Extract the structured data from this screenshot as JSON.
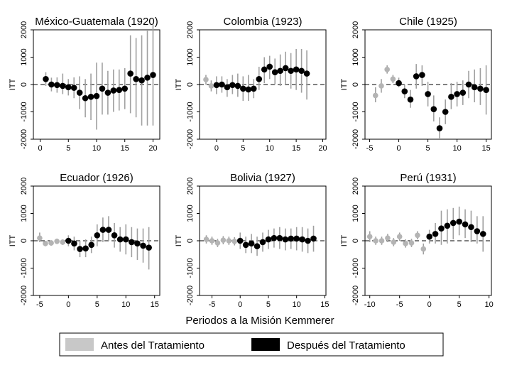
{
  "chart_data": {
    "type": "scatter",
    "style": "point estimates with confidence interval bars (event study)",
    "xlabel": "Periodos a la Misión Kemmerer",
    "ylabel": "ITT",
    "ylim": [
      -2000,
      2000
    ],
    "yticks": [
      "-2000",
      "-1000",
      "0",
      "1000",
      "2000"
    ],
    "legend": {
      "placement": "bottom",
      "entries": [
        {
          "label": "Antes del Tratamiento",
          "color": "#c8c8c8"
        },
        {
          "label": "Después del Tratamiento",
          "color": "#000000"
        }
      ]
    },
    "colors": {
      "pre": "#b4b4b4",
      "post": "#000000",
      "ci": "#a0a0a0",
      "zero_line": "#000000"
    },
    "panels": [
      {
        "title": "México-Guatemala (1920)",
        "xlim": [
          -1.2,
          21.2
        ],
        "xticks": [
          0,
          5,
          10,
          15,
          20
        ],
        "pre": [],
        "post": [
          {
            "x": 1,
            "y": 200,
            "lo": -50,
            "hi": 450
          },
          {
            "x": 2,
            "y": 0,
            "lo": -250,
            "hi": 250
          },
          {
            "x": 3,
            "y": -20,
            "lo": -300,
            "hi": 260
          },
          {
            "x": 4,
            "y": -50,
            "lo": -350,
            "hi": 400
          },
          {
            "x": 5,
            "y": -100,
            "lo": -400,
            "hi": 200
          },
          {
            "x": 6,
            "y": -120,
            "lo": -500,
            "hi": 260
          },
          {
            "x": 7,
            "y": -300,
            "lo": -900,
            "hi": 300
          },
          {
            "x": 8,
            "y": -500,
            "lo": -1200,
            "hi": 200
          },
          {
            "x": 9,
            "y": -450,
            "lo": -1300,
            "hi": 400
          },
          {
            "x": 10,
            "y": -420,
            "lo": -1650,
            "hi": 800
          },
          {
            "x": 11,
            "y": -150,
            "lo": -1100,
            "hi": 800
          },
          {
            "x": 12,
            "y": -300,
            "lo": -1100,
            "hi": 500
          },
          {
            "x": 13,
            "y": -220,
            "lo": -1000,
            "hi": 550
          },
          {
            "x": 14,
            "y": -200,
            "lo": -950,
            "hi": 550
          },
          {
            "x": 15,
            "y": -150,
            "lo": -900,
            "hi": 600
          },
          {
            "x": 16,
            "y": 400,
            "lo": -1050,
            "hi": 1800
          },
          {
            "x": 17,
            "y": 200,
            "lo": -1200,
            "hi": 1700
          },
          {
            "x": 18,
            "y": 150,
            "lo": -1500,
            "hi": 1800
          },
          {
            "x": 19,
            "y": 250,
            "lo": -1500,
            "hi": 2000
          },
          {
            "x": 20,
            "y": 350,
            "lo": -1500,
            "hi": 2200
          }
        ]
      },
      {
        "title": "Colombia (1923)",
        "xlim": [
          -3.2,
          20.6
        ],
        "xticks": [
          0,
          5,
          10,
          15,
          20
        ],
        "pre": [
          {
            "x": -2,
            "y": 180,
            "lo": 0,
            "hi": 350
          },
          {
            "x": -1,
            "y": -50,
            "lo": -250,
            "hi": 150
          }
        ],
        "post": [
          {
            "x": 0,
            "y": -20,
            "lo": -350,
            "hi": 300
          },
          {
            "x": 1,
            "y": 0,
            "lo": -300,
            "hi": 300
          },
          {
            "x": 2,
            "y": -100,
            "lo": -450,
            "hi": 200
          },
          {
            "x": 3,
            "y": -20,
            "lo": -350,
            "hi": 350
          },
          {
            "x": 4,
            "y": -50,
            "lo": -450,
            "hi": 400
          },
          {
            "x": 5,
            "y": -150,
            "lo": -600,
            "hi": 300
          },
          {
            "x": 6,
            "y": -180,
            "lo": -600,
            "hi": 350
          },
          {
            "x": 7,
            "y": -150,
            "lo": -500,
            "hi": 200
          },
          {
            "x": 8,
            "y": 200,
            "lo": -200,
            "hi": 650
          },
          {
            "x": 9,
            "y": 550,
            "lo": 50,
            "hi": 1000
          },
          {
            "x": 10,
            "y": 650,
            "lo": 200,
            "hi": 1050
          },
          {
            "x": 11,
            "y": 450,
            "lo": 0,
            "hi": 950
          },
          {
            "x": 12,
            "y": 500,
            "lo": -50,
            "hi": 1100
          },
          {
            "x": 13,
            "y": 600,
            "lo": 0,
            "hi": 1200
          },
          {
            "x": 14,
            "y": 500,
            "lo": -150,
            "hi": 1150
          },
          {
            "x": 15,
            "y": 550,
            "lo": -200,
            "hi": 1300
          },
          {
            "x": 16,
            "y": 500,
            "lo": -300,
            "hi": 1300
          },
          {
            "x": 17,
            "y": 400,
            "lo": -550,
            "hi": 1250
          }
        ]
      },
      {
        "title": "Chile (1925)",
        "xlim": [
          -5.8,
          15.9
        ],
        "xticks": [
          -5,
          0,
          5,
          10,
          15
        ],
        "pre": [
          {
            "x": -4,
            "y": -400,
            "lo": -650,
            "hi": -100
          },
          {
            "x": -3,
            "y": -50,
            "lo": -300,
            "hi": 200
          },
          {
            "x": -2,
            "y": 550,
            "lo": 400,
            "hi": 700
          },
          {
            "x": -1,
            "y": 200,
            "lo": 50,
            "hi": 350
          }
        ],
        "post": [
          {
            "x": 0,
            "y": 50,
            "lo": -100,
            "hi": 250
          },
          {
            "x": 1,
            "y": -250,
            "lo": -500,
            "hi": 0
          },
          {
            "x": 2,
            "y": -550,
            "lo": -850,
            "hi": -200
          },
          {
            "x": 3,
            "y": 300,
            "lo": -150,
            "hi": 750
          },
          {
            "x": 4,
            "y": 350,
            "lo": -50,
            "hi": 700
          },
          {
            "x": 5,
            "y": -350,
            "lo": -800,
            "hi": 100
          },
          {
            "x": 6,
            "y": -900,
            "lo": -1350,
            "hi": -400
          },
          {
            "x": 7,
            "y": -1600,
            "lo": -2000,
            "hi": -1200
          },
          {
            "x": 8,
            "y": -1000,
            "lo": -1450,
            "hi": -550
          },
          {
            "x": 9,
            "y": -450,
            "lo": -900,
            "hi": 50
          },
          {
            "x": 10,
            "y": -350,
            "lo": -800,
            "hi": 100
          },
          {
            "x": 11,
            "y": -300,
            "lo": -750,
            "hi": 150
          },
          {
            "x": 12,
            "y": 0,
            "lo": -500,
            "hi": 500
          },
          {
            "x": 13,
            "y": -100,
            "lo": -650,
            "hi": 550
          },
          {
            "x": 14,
            "y": -150,
            "lo": -750,
            "hi": 600
          },
          {
            "x": 15,
            "y": -200,
            "lo": -1100,
            "hi": 700
          }
        ]
      },
      {
        "title": "Ecuador (1926)",
        "xlim": [
          -6.1,
          15.9
        ],
        "xticks": [
          -5,
          0,
          5,
          10,
          15
        ],
        "pre": [
          {
            "x": -5,
            "y": 100,
            "lo": -50,
            "hi": 300
          },
          {
            "x": -4,
            "y": -100,
            "lo": -200,
            "hi": 0
          },
          {
            "x": -3,
            "y": -80,
            "lo": -180,
            "hi": 20
          },
          {
            "x": -2,
            "y": -20,
            "lo": -120,
            "hi": 80
          },
          {
            "x": -1,
            "y": -50,
            "lo": -150,
            "hi": 50
          }
        ],
        "post": [
          {
            "x": 0,
            "y": 0,
            "lo": -200,
            "hi": 200
          },
          {
            "x": 1,
            "y": -100,
            "lo": -350,
            "hi": 150
          },
          {
            "x": 2,
            "y": -300,
            "lo": -600,
            "hi": 0
          },
          {
            "x": 3,
            "y": -280,
            "lo": -600,
            "hi": 50
          },
          {
            "x": 4,
            "y": -150,
            "lo": -450,
            "hi": 150
          },
          {
            "x": 5,
            "y": 200,
            "lo": -200,
            "hi": 600
          },
          {
            "x": 6,
            "y": 400,
            "lo": -50,
            "hi": 850
          },
          {
            "x": 7,
            "y": 400,
            "lo": 0,
            "hi": 900
          },
          {
            "x": 8,
            "y": 200,
            "lo": -250,
            "hi": 650
          },
          {
            "x": 9,
            "y": 50,
            "lo": -400,
            "hi": 500
          },
          {
            "x": 10,
            "y": 50,
            "lo": -500,
            "hi": 600
          },
          {
            "x": 11,
            "y": -50,
            "lo": -600,
            "hi": 500
          },
          {
            "x": 12,
            "y": -100,
            "lo": -700,
            "hi": 450
          },
          {
            "x": 13,
            "y": -180,
            "lo": -800,
            "hi": 450
          },
          {
            "x": 14,
            "y": -250,
            "lo": -1050,
            "hi": 500
          }
        ]
      },
      {
        "title": "Bolivia (1927)",
        "xlim": [
          -7.2,
          15.2
        ],
        "xticks": [
          -5,
          0,
          5,
          10,
          15
        ],
        "pre": [
          {
            "x": -6,
            "y": 50,
            "lo": -100,
            "hi": 200
          },
          {
            "x": -5,
            "y": 0,
            "lo": -150,
            "hi": 150
          },
          {
            "x": -4,
            "y": -80,
            "lo": -230,
            "hi": 70
          },
          {
            "x": -3,
            "y": 20,
            "lo": -130,
            "hi": 170
          },
          {
            "x": -2,
            "y": 0,
            "lo": -150,
            "hi": 150
          },
          {
            "x": -1,
            "y": -20,
            "lo": -170,
            "hi": 130
          }
        ],
        "post": [
          {
            "x": 0,
            "y": 0,
            "lo": -300,
            "hi": 300
          },
          {
            "x": 1,
            "y": -150,
            "lo": -450,
            "hi": 150
          },
          {
            "x": 2,
            "y": -100,
            "lo": -450,
            "hi": 250
          },
          {
            "x": 3,
            "y": -200,
            "lo": -550,
            "hi": 150
          },
          {
            "x": 4,
            "y": -50,
            "lo": -400,
            "hi": 300
          },
          {
            "x": 5,
            "y": 50,
            "lo": -300,
            "hi": 400
          },
          {
            "x": 6,
            "y": 100,
            "lo": -250,
            "hi": 450
          },
          {
            "x": 7,
            "y": 100,
            "lo": -300,
            "hi": 500
          },
          {
            "x": 8,
            "y": 50,
            "lo": -350,
            "hi": 450
          },
          {
            "x": 9,
            "y": 80,
            "lo": -300,
            "hi": 450
          },
          {
            "x": 10,
            "y": 80,
            "lo": -350,
            "hi": 500
          },
          {
            "x": 11,
            "y": 50,
            "lo": -400,
            "hi": 500
          },
          {
            "x": 12,
            "y": 0,
            "lo": -450,
            "hi": 450
          },
          {
            "x": 13,
            "y": 80,
            "lo": -400,
            "hi": 550
          }
        ]
      },
      {
        "title": "Perú (1931)",
        "xlim": [
          -10.8,
          10.4
        ],
        "xticks": [
          -10,
          -5,
          0,
          5,
          10
        ],
        "pre": [
          {
            "x": -10,
            "y": 150,
            "lo": -50,
            "hi": 350
          },
          {
            "x": -9,
            "y": 0,
            "lo": -150,
            "hi": 150
          },
          {
            "x": -8,
            "y": 0,
            "lo": -150,
            "hi": 150
          },
          {
            "x": -7,
            "y": 100,
            "lo": -50,
            "hi": 250
          },
          {
            "x": -6,
            "y": -50,
            "lo": -200,
            "hi": 100
          },
          {
            "x": -5,
            "y": 150,
            "lo": 0,
            "hi": 300
          },
          {
            "x": -4,
            "y": -100,
            "lo": -250,
            "hi": 50
          },
          {
            "x": -3,
            "y": -80,
            "lo": -230,
            "hi": 70
          },
          {
            "x": -2,
            "y": 200,
            "lo": 50,
            "hi": 350
          },
          {
            "x": -1,
            "y": -300,
            "lo": -500,
            "hi": -100
          }
        ],
        "post": [
          {
            "x": 0,
            "y": 150,
            "lo": -100,
            "hi": 400
          },
          {
            "x": 1,
            "y": 250,
            "lo": -100,
            "hi": 650
          },
          {
            "x": 2,
            "y": 450,
            "lo": -150,
            "hi": 1100
          },
          {
            "x": 3,
            "y": 550,
            "lo": -100,
            "hi": 1150
          },
          {
            "x": 4,
            "y": 650,
            "lo": 50,
            "hi": 1200
          },
          {
            "x": 5,
            "y": 700,
            "lo": 200,
            "hi": 1250
          },
          {
            "x": 6,
            "y": 600,
            "lo": 100,
            "hi": 1150
          },
          {
            "x": 7,
            "y": 500,
            "lo": -50,
            "hi": 1100
          },
          {
            "x": 8,
            "y": 350,
            "lo": -100,
            "hi": 900
          },
          {
            "x": 9,
            "y": 250,
            "lo": -400,
            "hi": 900
          }
        ]
      }
    ]
  }
}
